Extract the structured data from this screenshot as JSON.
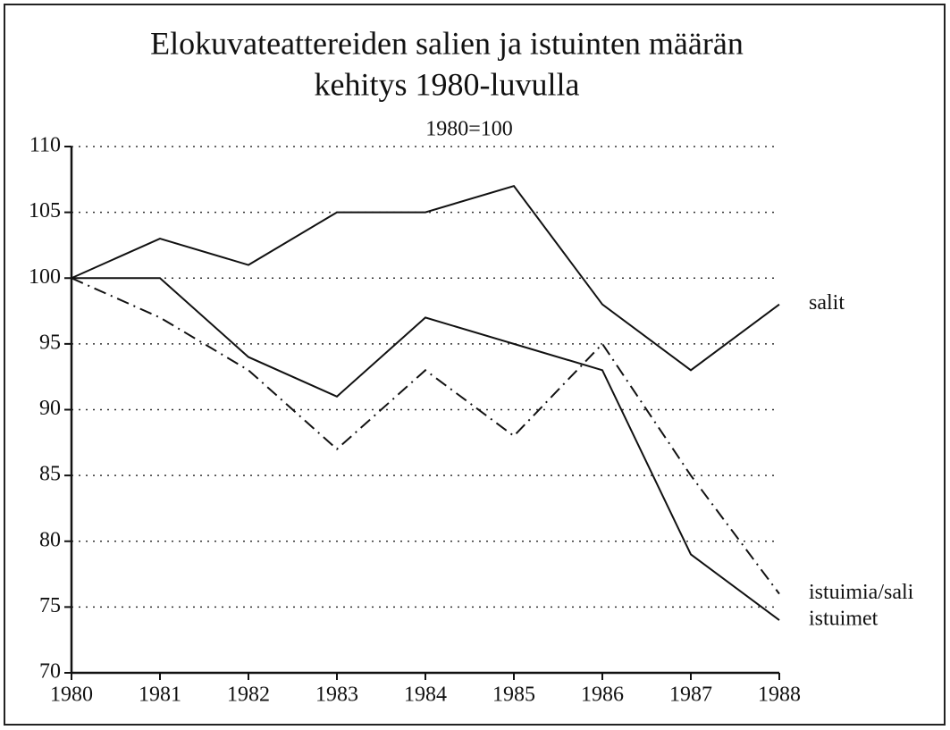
{
  "chart_data": {
    "type": "line",
    "title": [
      "Elokuvateattereiden salien ja istuinten määrän",
      "kehitys 1980-luvulla"
    ],
    "subtitle": "1980=100",
    "x": [
      1980,
      1981,
      1982,
      1983,
      1984,
      1985,
      1986,
      1987,
      1988
    ],
    "xlim": [
      1980,
      1988
    ],
    "xticks": [
      1980,
      1981,
      1982,
      1983,
      1984,
      1985,
      1986,
      1987,
      1988
    ],
    "ylim": [
      70,
      110
    ],
    "yticks": [
      70,
      75,
      80,
      85,
      90,
      95,
      100,
      105,
      110
    ],
    "grid": true,
    "series": [
      {
        "name": "salit",
        "color": "#111111",
        "style": "solid",
        "values": [
          100,
          103,
          101,
          105,
          105,
          107,
          98,
          93,
          98
        ]
      },
      {
        "name": "istuimia/sali",
        "color": "#111111",
        "style": "dashdot",
        "values": [
          100,
          97,
          93,
          87,
          93,
          88,
          95,
          85,
          76
        ]
      },
      {
        "name": "istuimet",
        "color": "#111111",
        "style": "solid",
        "values": [
          100,
          100,
          94,
          91,
          97,
          95,
          93,
          79,
          74
        ]
      }
    ]
  }
}
